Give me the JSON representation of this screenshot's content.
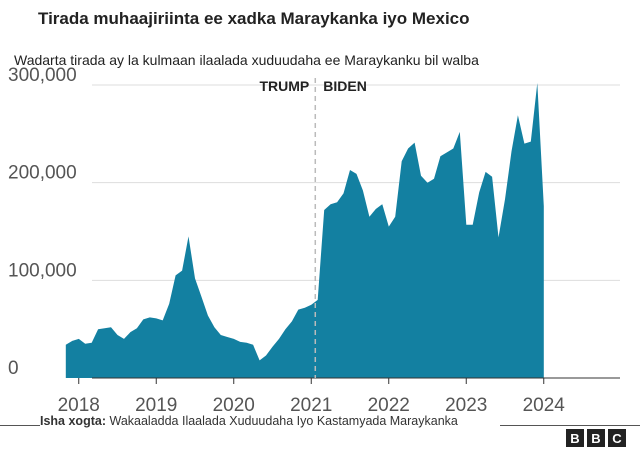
{
  "header": {
    "title": "Tirada muhaajiriinta ee xadka Maraykanka iyo Mexico",
    "subtitle": "Wadarta tirada ay la kulmaan ilaalada xuduudaha ee Maraykanku bil walba"
  },
  "footer": {
    "source_label": "Isha xogta:",
    "source_text": "Wakaaladda Ilaalada Xuduudaha Iyo Kastamyada Maraykanka",
    "logo": [
      "B",
      "B",
      "C"
    ]
  },
  "chart_data": {
    "type": "area",
    "title": "Tirada muhaajiriinta ee xadka Maraykanka iyo Mexico",
    "subtitle": "Wadarta tirada ay la kulmaan ilaalada xuduudaha ee Maraykanku bil walba",
    "xlabel": "",
    "ylabel": "",
    "x_ticks": [
      "2018",
      "2019",
      "2020",
      "2021",
      "2022",
      "2023",
      "2024"
    ],
    "y_ticks": [
      "0",
      "100,000",
      "200,000",
      "300,000"
    ],
    "ylim": [
      0,
      300000
    ],
    "grid": true,
    "fill_color": "#1380a1",
    "annotations": [
      {
        "label": "TRUMP",
        "date": "2021-01-20"
      },
      {
        "label": "BIDEN",
        "date": "2021-01-20"
      }
    ],
    "series": [
      {
        "x": [
          "2017-11",
          "2017-12",
          "2018-01",
          "2018-02",
          "2018-03",
          "2018-04",
          "2018-05",
          "2018-06",
          "2018-07",
          "2018-08",
          "2018-09",
          "2018-10",
          "2018-11",
          "2018-12",
          "2019-01",
          "2019-02",
          "2019-03",
          "2019-04",
          "2019-05",
          "2019-06",
          "2019-07",
          "2019-08",
          "2019-09",
          "2019-10",
          "2019-11",
          "2019-12",
          "2020-01",
          "2020-02",
          "2020-03",
          "2020-04",
          "2020-05",
          "2020-06",
          "2020-07",
          "2020-08",
          "2020-09",
          "2020-10",
          "2020-11",
          "2020-12",
          "2021-01",
          "2021-02",
          "2021-03",
          "2021-04",
          "2021-05",
          "2021-06",
          "2021-07",
          "2021-08",
          "2021-09",
          "2021-10",
          "2021-11",
          "2021-12",
          "2022-01",
          "2022-02",
          "2022-03",
          "2022-04",
          "2022-05",
          "2022-06",
          "2022-07",
          "2022-08",
          "2022-09",
          "2022-10",
          "2022-11",
          "2022-12",
          "2023-01",
          "2023-02",
          "2023-03",
          "2023-04",
          "2023-05",
          "2023-06",
          "2023-07",
          "2023-08",
          "2023-09",
          "2023-10",
          "2023-11",
          "2023-12",
          "2024-01"
        ],
        "values": [
          34000,
          38000,
          40000,
          35000,
          36000,
          50000,
          51000,
          52000,
          44000,
          40000,
          47000,
          51000,
          60000,
          62000,
          61000,
          59000,
          76000,
          105000,
          110000,
          145000,
          102000,
          83000,
          64000,
          52000,
          44000,
          42000,
          40000,
          37000,
          36000,
          34000,
          18000,
          23000,
          32000,
          40000,
          50000,
          58000,
          70000,
          72000,
          75000,
          80000,
          172000,
          178000,
          180000,
          189000,
          213000,
          209000,
          192000,
          165000,
          173000,
          178000,
          155000,
          165000,
          222000,
          235000,
          241000,
          207000,
          200000,
          204000,
          227000,
          231000,
          235000,
          252000,
          157000,
          157000,
          190000,
          211000,
          206000,
          144000,
          183000,
          232000,
          269000,
          240000,
          242000,
          302000,
          176000
        ]
      }
    ]
  }
}
